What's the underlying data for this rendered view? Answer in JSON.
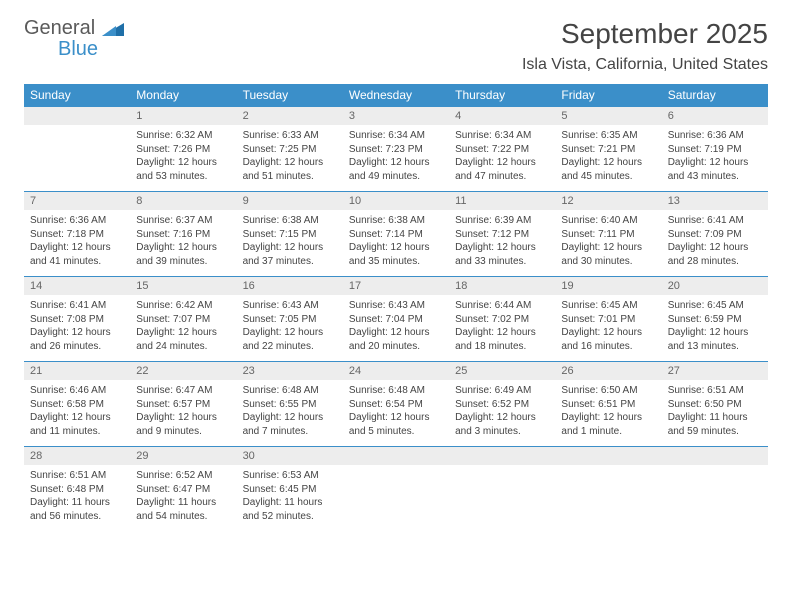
{
  "brand": {
    "general": "General",
    "blue": "Blue"
  },
  "title": "September 2025",
  "location": "Isla Vista, California, United States",
  "header_bg": "#3b8fc9",
  "daynum_bg": "#ededed",
  "days": [
    "Sunday",
    "Monday",
    "Tuesday",
    "Wednesday",
    "Thursday",
    "Friday",
    "Saturday"
  ],
  "weeks": [
    {
      "nums": [
        "",
        "1",
        "2",
        "3",
        "4",
        "5",
        "6"
      ],
      "cells": [
        {
          "empty": true
        },
        {
          "sunrise": "Sunrise: 6:32 AM",
          "sunset": "Sunset: 7:26 PM",
          "daylight": "Daylight: 12 hours and 53 minutes."
        },
        {
          "sunrise": "Sunrise: 6:33 AM",
          "sunset": "Sunset: 7:25 PM",
          "daylight": "Daylight: 12 hours and 51 minutes."
        },
        {
          "sunrise": "Sunrise: 6:34 AM",
          "sunset": "Sunset: 7:23 PM",
          "daylight": "Daylight: 12 hours and 49 minutes."
        },
        {
          "sunrise": "Sunrise: 6:34 AM",
          "sunset": "Sunset: 7:22 PM",
          "daylight": "Daylight: 12 hours and 47 minutes."
        },
        {
          "sunrise": "Sunrise: 6:35 AM",
          "sunset": "Sunset: 7:21 PM",
          "daylight": "Daylight: 12 hours and 45 minutes."
        },
        {
          "sunrise": "Sunrise: 6:36 AM",
          "sunset": "Sunset: 7:19 PM",
          "daylight": "Daylight: 12 hours and 43 minutes."
        }
      ]
    },
    {
      "nums": [
        "7",
        "8",
        "9",
        "10",
        "11",
        "12",
        "13"
      ],
      "cells": [
        {
          "sunrise": "Sunrise: 6:36 AM",
          "sunset": "Sunset: 7:18 PM",
          "daylight": "Daylight: 12 hours and 41 minutes."
        },
        {
          "sunrise": "Sunrise: 6:37 AM",
          "sunset": "Sunset: 7:16 PM",
          "daylight": "Daylight: 12 hours and 39 minutes."
        },
        {
          "sunrise": "Sunrise: 6:38 AM",
          "sunset": "Sunset: 7:15 PM",
          "daylight": "Daylight: 12 hours and 37 minutes."
        },
        {
          "sunrise": "Sunrise: 6:38 AM",
          "sunset": "Sunset: 7:14 PM",
          "daylight": "Daylight: 12 hours and 35 minutes."
        },
        {
          "sunrise": "Sunrise: 6:39 AM",
          "sunset": "Sunset: 7:12 PM",
          "daylight": "Daylight: 12 hours and 33 minutes."
        },
        {
          "sunrise": "Sunrise: 6:40 AM",
          "sunset": "Sunset: 7:11 PM",
          "daylight": "Daylight: 12 hours and 30 minutes."
        },
        {
          "sunrise": "Sunrise: 6:41 AM",
          "sunset": "Sunset: 7:09 PM",
          "daylight": "Daylight: 12 hours and 28 minutes."
        }
      ]
    },
    {
      "nums": [
        "14",
        "15",
        "16",
        "17",
        "18",
        "19",
        "20"
      ],
      "cells": [
        {
          "sunrise": "Sunrise: 6:41 AM",
          "sunset": "Sunset: 7:08 PM",
          "daylight": "Daylight: 12 hours and 26 minutes."
        },
        {
          "sunrise": "Sunrise: 6:42 AM",
          "sunset": "Sunset: 7:07 PM",
          "daylight": "Daylight: 12 hours and 24 minutes."
        },
        {
          "sunrise": "Sunrise: 6:43 AM",
          "sunset": "Sunset: 7:05 PM",
          "daylight": "Daylight: 12 hours and 22 minutes."
        },
        {
          "sunrise": "Sunrise: 6:43 AM",
          "sunset": "Sunset: 7:04 PM",
          "daylight": "Daylight: 12 hours and 20 minutes."
        },
        {
          "sunrise": "Sunrise: 6:44 AM",
          "sunset": "Sunset: 7:02 PM",
          "daylight": "Daylight: 12 hours and 18 minutes."
        },
        {
          "sunrise": "Sunrise: 6:45 AM",
          "sunset": "Sunset: 7:01 PM",
          "daylight": "Daylight: 12 hours and 16 minutes."
        },
        {
          "sunrise": "Sunrise: 6:45 AM",
          "sunset": "Sunset: 6:59 PM",
          "daylight": "Daylight: 12 hours and 13 minutes."
        }
      ]
    },
    {
      "nums": [
        "21",
        "22",
        "23",
        "24",
        "25",
        "26",
        "27"
      ],
      "cells": [
        {
          "sunrise": "Sunrise: 6:46 AM",
          "sunset": "Sunset: 6:58 PM",
          "daylight": "Daylight: 12 hours and 11 minutes."
        },
        {
          "sunrise": "Sunrise: 6:47 AM",
          "sunset": "Sunset: 6:57 PM",
          "daylight": "Daylight: 12 hours and 9 minutes."
        },
        {
          "sunrise": "Sunrise: 6:48 AM",
          "sunset": "Sunset: 6:55 PM",
          "daylight": "Daylight: 12 hours and 7 minutes."
        },
        {
          "sunrise": "Sunrise: 6:48 AM",
          "sunset": "Sunset: 6:54 PM",
          "daylight": "Daylight: 12 hours and 5 minutes."
        },
        {
          "sunrise": "Sunrise: 6:49 AM",
          "sunset": "Sunset: 6:52 PM",
          "daylight": "Daylight: 12 hours and 3 minutes."
        },
        {
          "sunrise": "Sunrise: 6:50 AM",
          "sunset": "Sunset: 6:51 PM",
          "daylight": "Daylight: 12 hours and 1 minute."
        },
        {
          "sunrise": "Sunrise: 6:51 AM",
          "sunset": "Sunset: 6:50 PM",
          "daylight": "Daylight: 11 hours and 59 minutes."
        }
      ]
    },
    {
      "nums": [
        "28",
        "29",
        "30",
        "",
        "",
        "",
        ""
      ],
      "cells": [
        {
          "sunrise": "Sunrise: 6:51 AM",
          "sunset": "Sunset: 6:48 PM",
          "daylight": "Daylight: 11 hours and 56 minutes."
        },
        {
          "sunrise": "Sunrise: 6:52 AM",
          "sunset": "Sunset: 6:47 PM",
          "daylight": "Daylight: 11 hours and 54 minutes."
        },
        {
          "sunrise": "Sunrise: 6:53 AM",
          "sunset": "Sunset: 6:45 PM",
          "daylight": "Daylight: 11 hours and 52 minutes."
        },
        {
          "empty": true
        },
        {
          "empty": true
        },
        {
          "empty": true
        },
        {
          "empty": true
        }
      ]
    }
  ]
}
